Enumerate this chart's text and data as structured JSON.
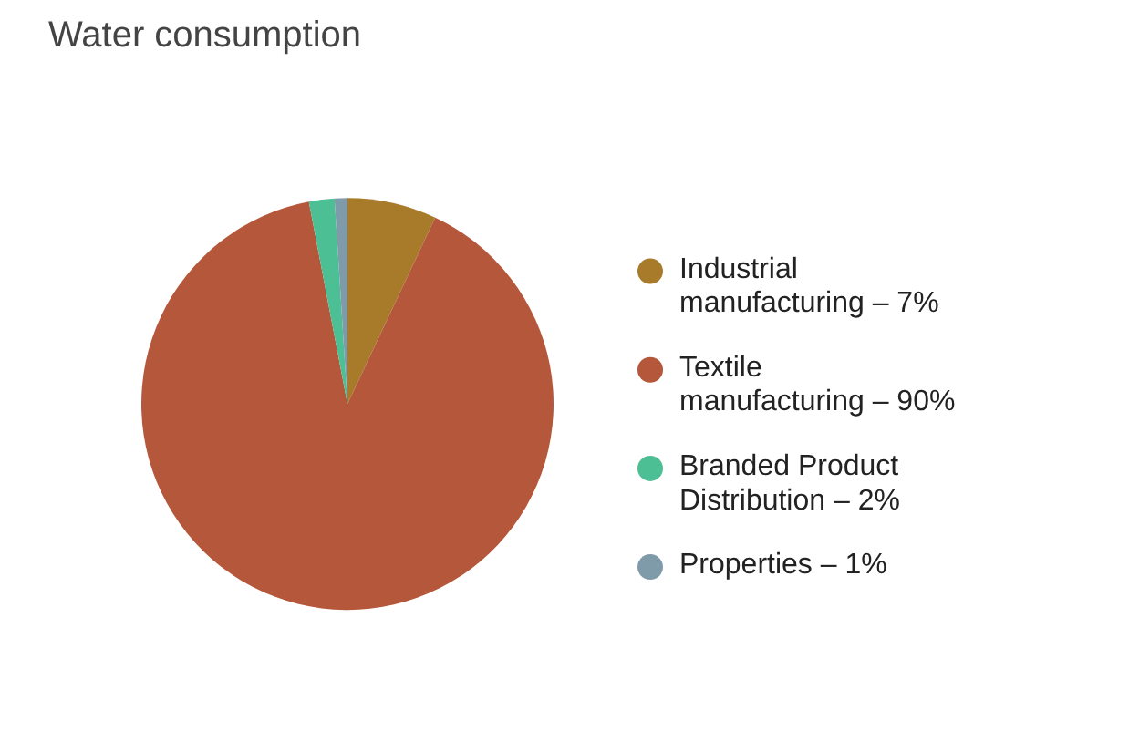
{
  "chart_data": {
    "type": "pie",
    "title": "Water consumption",
    "categories": [
      "Industrial manufacturing",
      "Textile manufacturing",
      "Branded Product Distribution",
      "Properties"
    ],
    "values": [
      7,
      90,
      2,
      1
    ],
    "value_labels": [
      "7%",
      "90%",
      "2%",
      "1%"
    ],
    "colors": [
      "#a87b2a",
      "#b5573a",
      "#4dbf94",
      "#7f9aa8"
    ],
    "legend": "right"
  }
}
